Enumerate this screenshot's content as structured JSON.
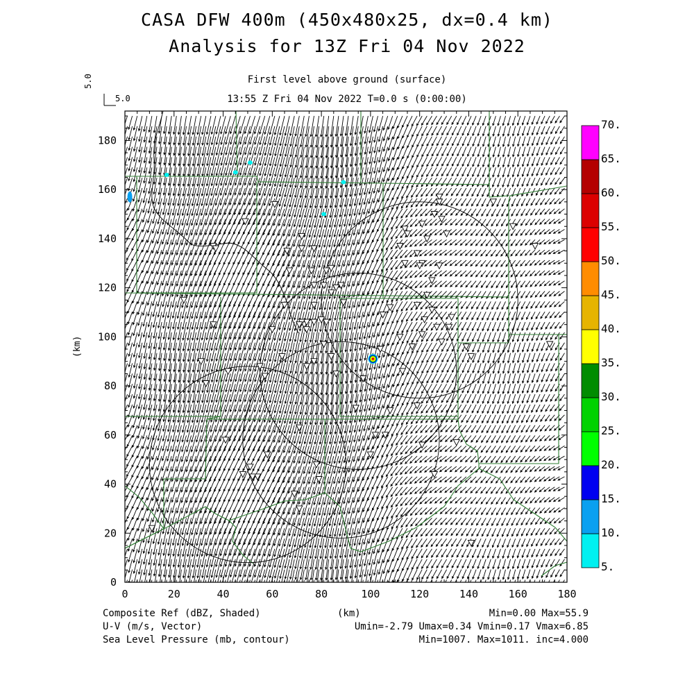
{
  "title": {
    "line1": "CASA DFW 400m (450x480x25, dx=0.4 km)",
    "line2": "Analysis for 13Z Fri 04 Nov 2022"
  },
  "subtitle": {
    "level": "First level above ground (surface)",
    "time": "13:55 Z Fri 04 Nov 2022    T=0.0 s (0:00:00)"
  },
  "reference_vector": {
    "vertical_label": "5.0",
    "label": "5.0"
  },
  "axes": {
    "xlabel": "(km)",
    "ylabel": "(km)",
    "x_range": [
      0,
      180
    ],
    "y_range": [
      0,
      192
    ],
    "x_ticks": [
      "0",
      "20",
      "40",
      "60",
      "80",
      "100",
      "120",
      "140",
      "160",
      "180"
    ],
    "y_ticks": [
      "0",
      "20",
      "40",
      "60",
      "80",
      "100",
      "120",
      "140",
      "160",
      "180"
    ]
  },
  "colorbar": {
    "labels": [
      "5.",
      "10.",
      "15.",
      "20.",
      "25.",
      "30.",
      "35.",
      "40.",
      "45.",
      "50.",
      "55.",
      "60.",
      "65.",
      "70."
    ],
    "colors": [
      "#00f0f0",
      "#0aa0f0",
      "#0000f0",
      "#00ff00",
      "#00d200",
      "#008c00",
      "#ffff00",
      "#e6b400",
      "#ff8c00",
      "#ff0000",
      "#dc0000",
      "#b40000",
      "#ff00ff",
      "#a000d0"
    ]
  },
  "footer": {
    "left1": "Composite Ref (dBZ, Shaded)",
    "left2": "U-V (m/s, Vector)",
    "left3": "Sea Level Pressure (mb, contour)",
    "center": "(km)",
    "right1": "Min=0.00 Max=55.9",
    "right2": "Umin=-2.79 Umax=0.34 Vmin=0.17 Vmax=6.85",
    "right3": "Min=1007. Max=1011. inc=4.000"
  },
  "map_data": {
    "radar_rings": [
      {
        "center": [
          120,
          115
        ],
        "radius": 40
      },
      {
        "center": [
          95,
          86
        ],
        "radius": 40
      },
      {
        "center": [
          88,
          58
        ],
        "radius": 40
      },
      {
        "center": [
          50,
          48
        ],
        "radius": 40
      }
    ],
    "reflectivity_echoes": [
      {
        "x": 101,
        "y": 91,
        "dbz": 55.9
      },
      {
        "x": 2,
        "y": 157,
        "dbz": 12
      },
      {
        "x": 17,
        "y": 166,
        "dbz": 8
      },
      {
        "x": 45,
        "y": 167,
        "dbz": 8
      },
      {
        "x": 51,
        "y": 171,
        "dbz": 9
      },
      {
        "x": 89,
        "y": 163,
        "dbz": 8
      },
      {
        "x": 81,
        "y": 150,
        "dbz": 8
      }
    ],
    "stations": [
      [
        24,
        115
      ],
      [
        36,
        137
      ],
      [
        37,
        136
      ],
      [
        36,
        105
      ],
      [
        31,
        90
      ],
      [
        33,
        81
      ],
      [
        55,
        88
      ],
      [
        57,
        84
      ],
      [
        65,
        113
      ],
      [
        67,
        127
      ],
      [
        66,
        135
      ],
      [
        72,
        141
      ],
      [
        72,
        136
      ],
      [
        77,
        136
      ],
      [
        76,
        127
      ],
      [
        82,
        127
      ],
      [
        84,
        128
      ],
      [
        77,
        121
      ],
      [
        81,
        121
      ],
      [
        86,
        120
      ],
      [
        88,
        121
      ],
      [
        84,
        118
      ],
      [
        89,
        114
      ],
      [
        77,
        113
      ],
      [
        73,
        105
      ],
      [
        74,
        103
      ],
      [
        74,
        106
      ],
      [
        72,
        106
      ],
      [
        77,
        106
      ],
      [
        80,
        107
      ],
      [
        82,
        106
      ],
      [
        81,
        97
      ],
      [
        84,
        92
      ],
      [
        77,
        90
      ],
      [
        74,
        88
      ],
      [
        64,
        92
      ],
      [
        54,
        43
      ],
      [
        52,
        43
      ],
      [
        60,
        103
      ],
      [
        49,
        147
      ],
      [
        61,
        154
      ],
      [
        71,
        105
      ],
      [
        86,
        85
      ],
      [
        97,
        83
      ],
      [
        108,
        70
      ],
      [
        102,
        60
      ],
      [
        112,
        100
      ],
      [
        105,
        109
      ],
      [
        117,
        96
      ],
      [
        121,
        101
      ],
      [
        114,
        130
      ],
      [
        112,
        137
      ],
      [
        114,
        144
      ],
      [
        115,
        142
      ],
      [
        121,
        146
      ],
      [
        119,
        134
      ],
      [
        121,
        130
      ],
      [
        128,
        129
      ],
      [
        123,
        140
      ],
      [
        126,
        150
      ],
      [
        128,
        157
      ],
      [
        128,
        155
      ],
      [
        129,
        148
      ],
      [
        131,
        142
      ],
      [
        125,
        111
      ],
      [
        127,
        104
      ],
      [
        129,
        98
      ],
      [
        133,
        108
      ],
      [
        139,
        96
      ],
      [
        141,
        92
      ],
      [
        132,
        104
      ],
      [
        120,
        129
      ],
      [
        125,
        123
      ],
      [
        123,
        117
      ],
      [
        122,
        107
      ],
      [
        119,
        113
      ],
      [
        108,
        112
      ],
      [
        113,
        86
      ],
      [
        119,
        72
      ],
      [
        121,
        56
      ],
      [
        135,
        57
      ],
      [
        126,
        44
      ],
      [
        141,
        16
      ],
      [
        150,
        155
      ],
      [
        167,
        137
      ],
      [
        173,
        97
      ],
      [
        158,
        145
      ],
      [
        11,
        22
      ],
      [
        41,
        58
      ],
      [
        69,
        36
      ],
      [
        71,
        30
      ],
      [
        79,
        42
      ],
      [
        78,
        48
      ],
      [
        58,
        52
      ],
      [
        51,
        47
      ],
      [
        48,
        44
      ],
      [
        71,
        63
      ],
      [
        42,
        86
      ],
      [
        94,
        71
      ],
      [
        106,
        60
      ],
      [
        100,
        52
      ],
      [
        104,
        95
      ]
    ],
    "wind_vector_grid": {
      "dx_km": 2.0,
      "dy_km": 4.2,
      "typical_u": -1.3,
      "typical_v": 5.0
    }
  }
}
